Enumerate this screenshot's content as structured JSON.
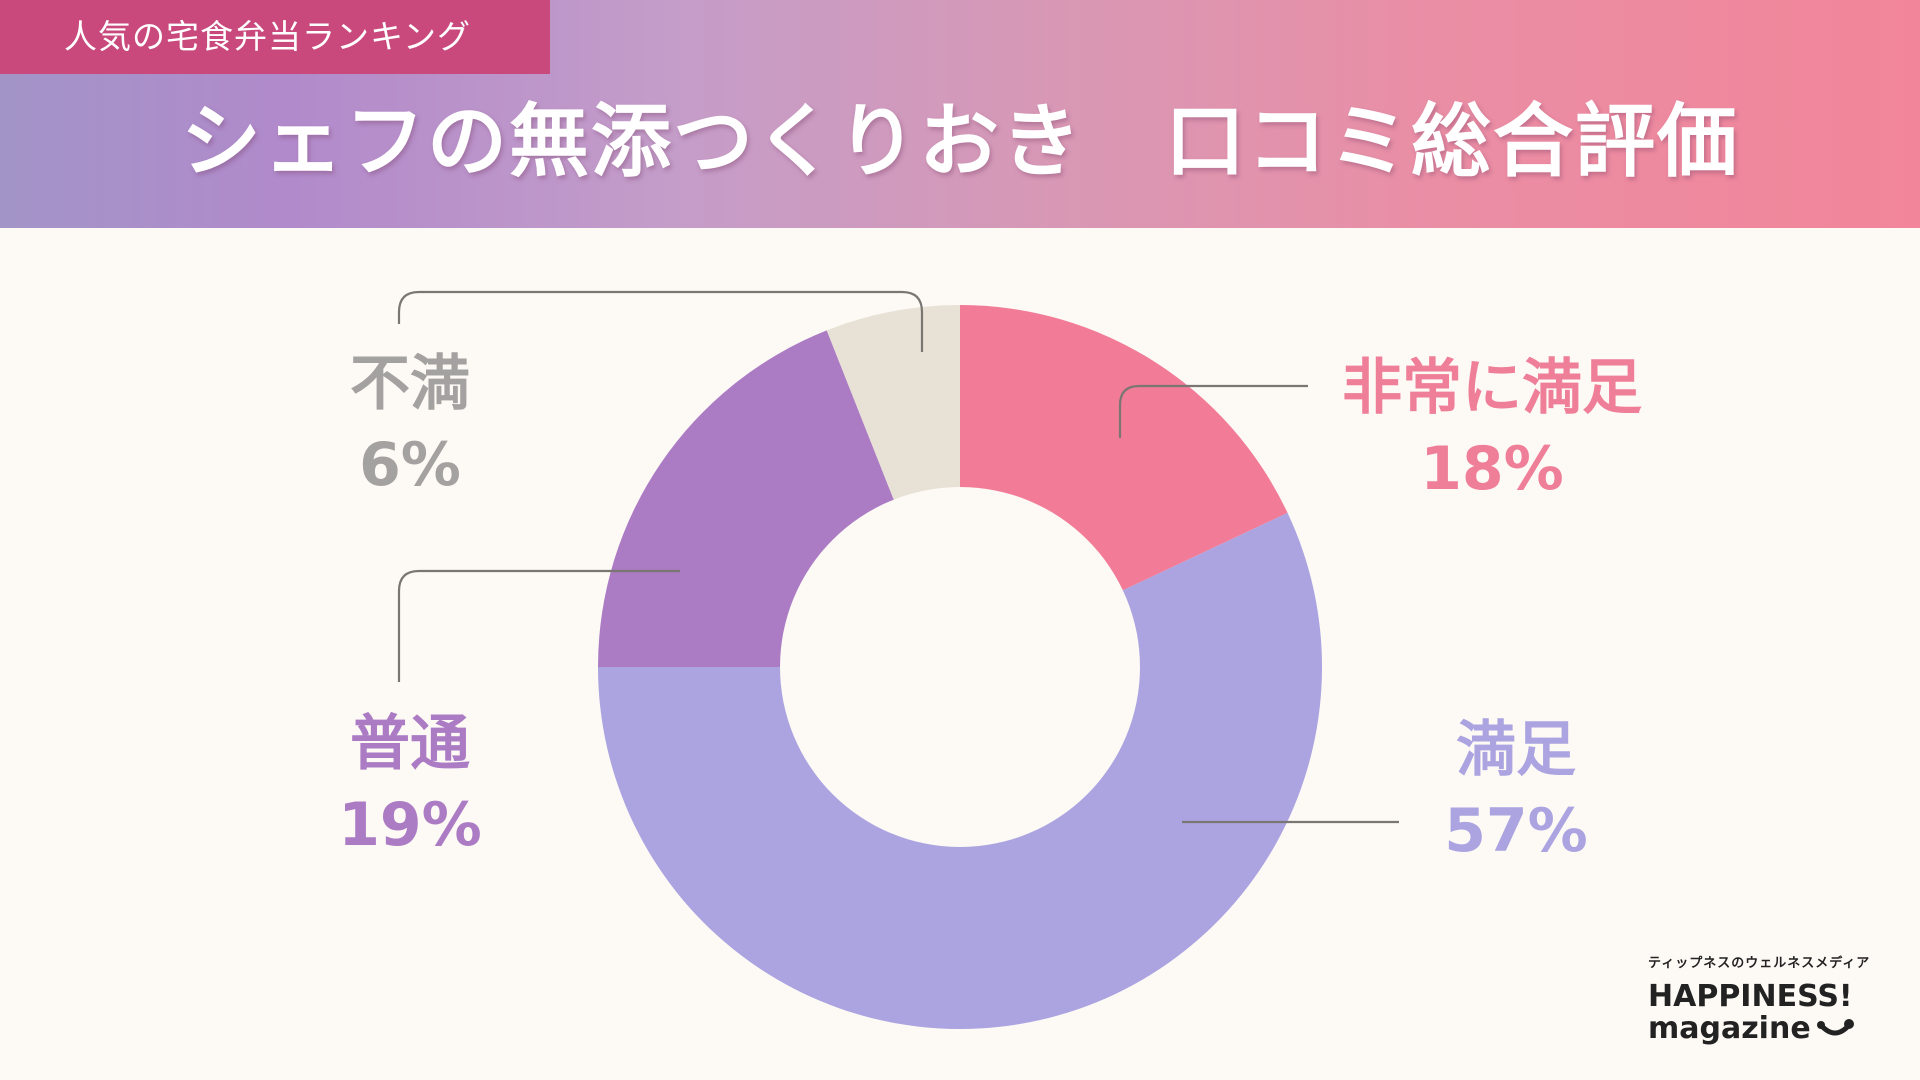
{
  "header": {
    "tag": "人気の宅食弁当ランキング",
    "title": "シェフの無添つくりおき　口コミ総合評価"
  },
  "chart_data": {
    "type": "pie",
    "subtype": "donut",
    "title": "シェフの無添つくりおき 口コミ総合評価",
    "categories": [
      "非常に満足",
      "満足",
      "普通",
      "不満"
    ],
    "values": [
      18,
      57,
      19,
      6
    ],
    "unit": "%",
    "colors": [
      "#f27b97",
      "#aba4e0",
      "#ab7bc4",
      "#e7e1d6"
    ],
    "start_angle": "12 o'clock, clockwise",
    "legend": "none (direct labels with leader lines)"
  },
  "labels": [
    {
      "name": "非常に満足",
      "pct": "18%",
      "color": "#ef7e98"
    },
    {
      "name": "満足",
      "pct": "57%",
      "color": "#aba4e0"
    },
    {
      "name": "普通",
      "pct": "19%",
      "color": "#ab7bc4"
    },
    {
      "name": "不満",
      "pct": "6%",
      "color": "#a4a2a0"
    }
  ],
  "logo": {
    "tagline": "ティップネスのウェルネスメディア",
    "line1": "HAPPINESS!",
    "line2": "magazine"
  }
}
